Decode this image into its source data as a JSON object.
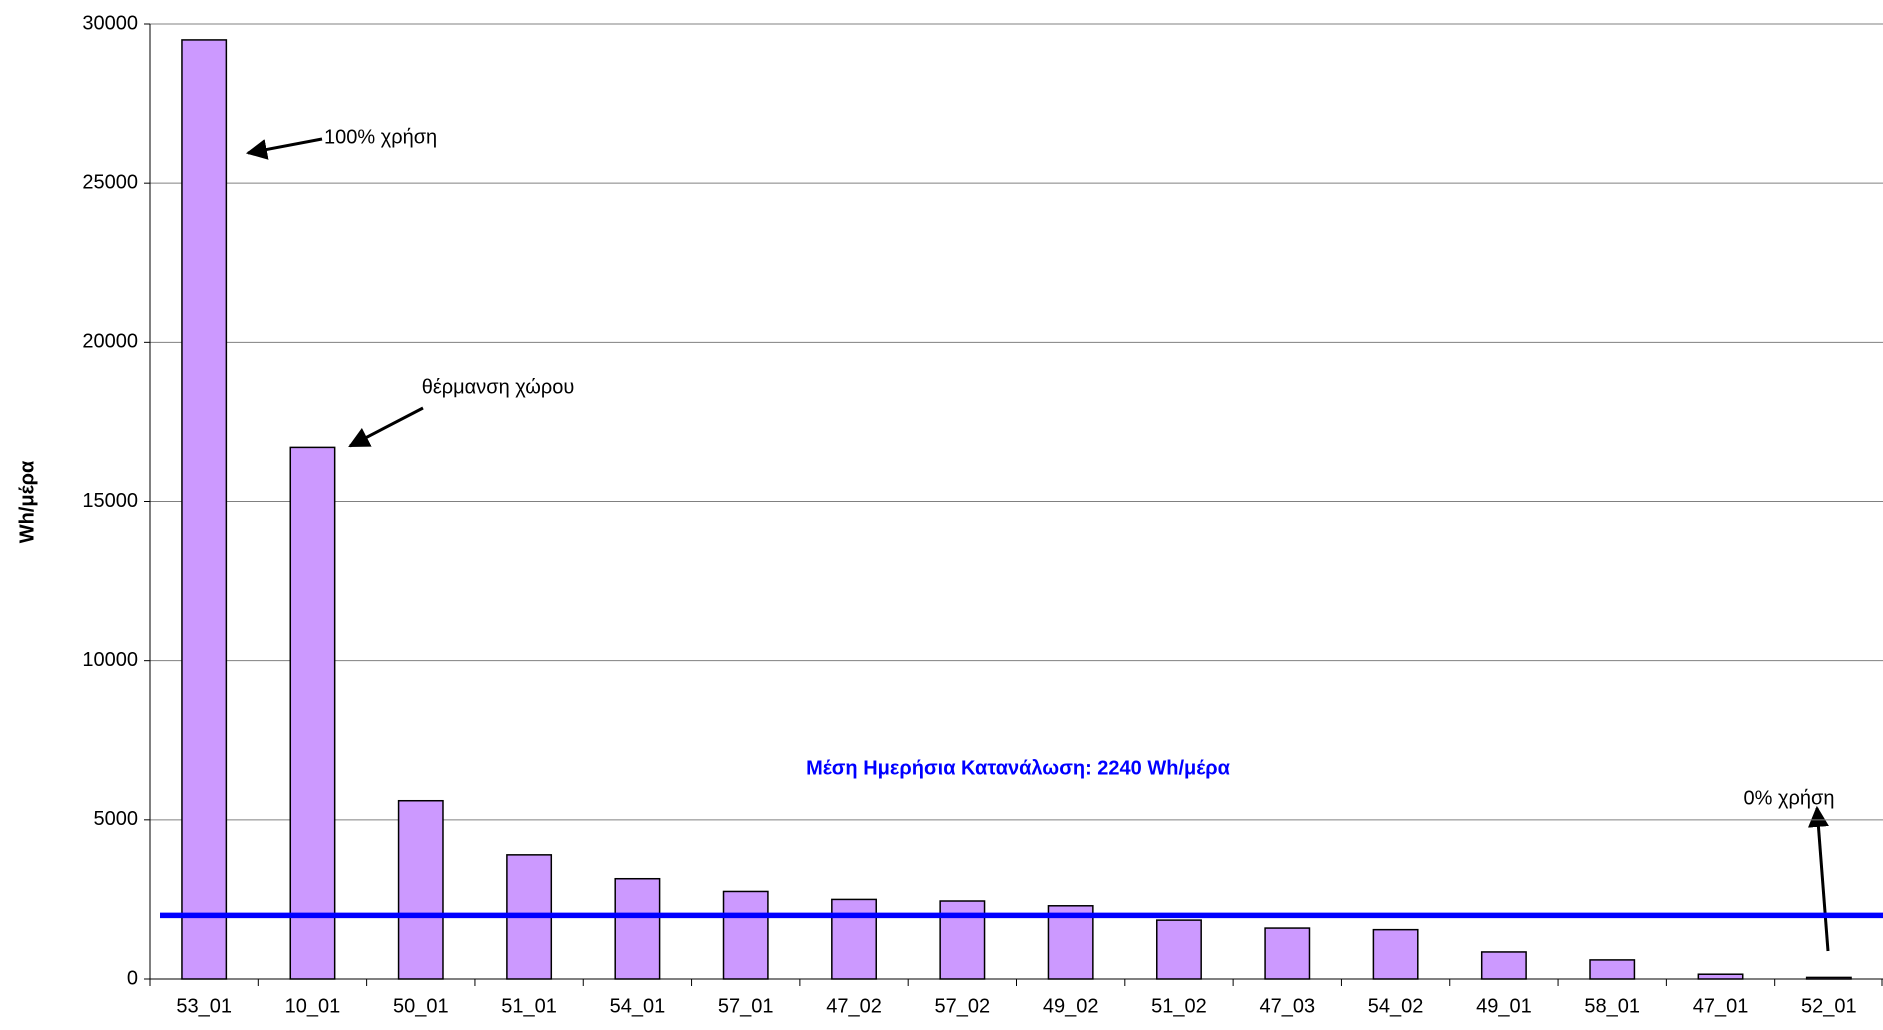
{
  "chart_data": {
    "type": "bar",
    "y_label": "Wh/μέρα",
    "categories": [
      "53_01",
      "10_01",
      "50_01",
      "51_01",
      "54_01",
      "57_01",
      "47_02",
      "57_02",
      "49_02",
      "51_02",
      "47_03",
      "54_02",
      "49_01",
      "58_01",
      "47_01",
      "52_01"
    ],
    "values": [
      29500,
      16700,
      5600,
      3900,
      3150,
      2750,
      2500,
      2450,
      2300,
      1850,
      1600,
      1550,
      850,
      600,
      150,
      50
    ],
    "color": "#cc99ff",
    "ylim": [
      0,
      30000
    ],
    "yticks": [
      0,
      5000,
      10000,
      15000,
      20000,
      25000,
      30000
    ],
    "grid": true,
    "reference_line": {
      "value": 2000,
      "color": "#0000ff"
    },
    "annotations": [
      "100% χρήση",
      "θέρμανση χώρου",
      "Μέση Ημερήσια Κατανάλωση:   2240 Wh/μέρα",
      "0% χρήση"
    ]
  }
}
